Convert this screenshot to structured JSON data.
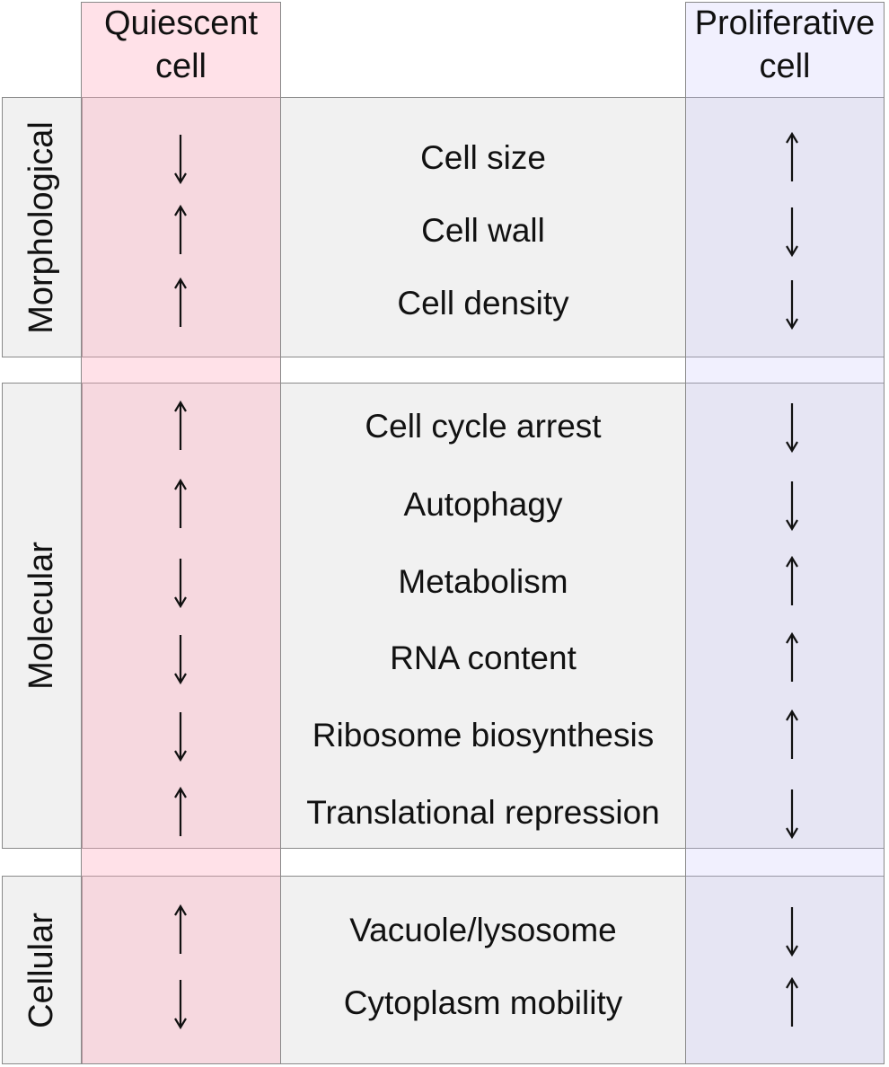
{
  "columns": {
    "left_header": [
      "Quiescent",
      "cell"
    ],
    "right_header": [
      "Proliferative",
      "cell"
    ]
  },
  "categories": [
    {
      "label": "Morphological",
      "rows": [
        {
          "feature": "Cell size",
          "quiescent": "down",
          "proliferative": "up"
        },
        {
          "feature": "Cell wall",
          "quiescent": "up",
          "proliferative": "down"
        },
        {
          "feature": "Cell density",
          "quiescent": "up",
          "proliferative": "down"
        }
      ]
    },
    {
      "label": "Molecular",
      "rows": [
        {
          "feature": "Cell cycle arrest",
          "quiescent": "up",
          "proliferative": "down"
        },
        {
          "feature": "Autophagy",
          "quiescent": "up",
          "proliferative": "down"
        },
        {
          "feature": "Metabolism",
          "quiescent": "down",
          "proliferative": "up"
        },
        {
          "feature": "RNA content",
          "quiescent": "down",
          "proliferative": "up"
        },
        {
          "feature": "Ribosome biosynthesis",
          "quiescent": "down",
          "proliferative": "up"
        },
        {
          "feature": "Translational repression",
          "quiescent": "up",
          "proliferative": "down"
        }
      ]
    },
    {
      "label": "Cellular",
      "rows": [
        {
          "feature": "Vacuole/lysosome",
          "quiescent": "up",
          "proliferative": "down"
        },
        {
          "feature": "Cytoplasm mobility",
          "quiescent": "down",
          "proliferative": "up"
        }
      ]
    }
  ],
  "colors": {
    "quiescent_column": "#ffaabe",
    "proliferative_column": "#c8c3fa",
    "section_background": "#f1f1f1",
    "border": "#8a8a8a",
    "text": "#111111"
  }
}
